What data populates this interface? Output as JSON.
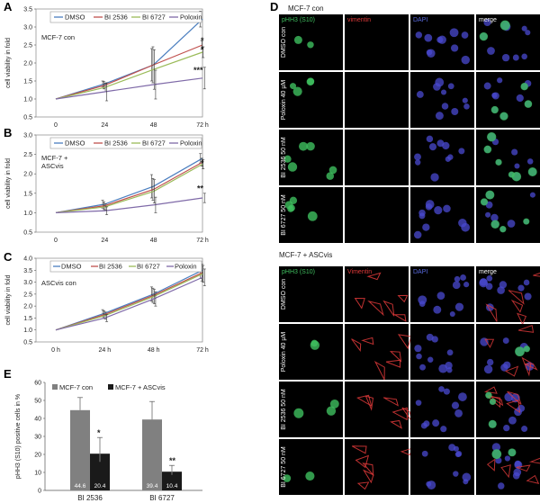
{
  "panels": {
    "A": {
      "letter": "A"
    },
    "B": {
      "letter": "B"
    },
    "C": {
      "letter": "C"
    },
    "D": {
      "letter": "D"
    },
    "E": {
      "letter": "E"
    }
  },
  "colors": {
    "dmso": "#4a7ebf",
    "bi2536": "#c0504d",
    "bi6727": "#9bbb59",
    "poloxin": "#7f6aa8",
    "mcf7con": "#808080",
    "mcf7asc": "#1a1a1a",
    "green": "#3fbf5f",
    "red": "#e03a3a",
    "blue": "#4a4ad0"
  },
  "chart_data": [
    {
      "id": "A",
      "type": "line",
      "title": "",
      "annotation": "MCF-7 con",
      "xlabel": "",
      "ylabel": "cell viability in fold",
      "categories": [
        "0",
        "24",
        "48",
        "72 h"
      ],
      "ylim": [
        0.5,
        3.5
      ],
      "yticks": [
        "0.5",
        "1.0",
        "1.5",
        "2.0",
        "2.5",
        "3.0",
        "3.5"
      ],
      "series": [
        {
          "name": "DMSO",
          "values": [
            1.0,
            1.42,
            1.95,
            3.22
          ],
          "err": [
            0,
            0.08,
            0.45,
            0.22
          ]
        },
        {
          "name": "BI 2536",
          "values": [
            1.0,
            1.38,
            1.95,
            2.5
          ],
          "err": [
            0,
            0.1,
            0.5,
            0.12
          ]
        },
        {
          "name": "BI 6727",
          "values": [
            1.0,
            1.32,
            1.82,
            2.3
          ],
          "err": [
            0,
            0.12,
            0.55,
            0.15
          ]
        },
        {
          "name": "Poloxin",
          "values": [
            1.0,
            1.2,
            1.4,
            1.58
          ],
          "err": [
            0,
            0.25,
            0.4,
            0.3
          ]
        }
      ],
      "significance": [
        "*",
        "*",
        "***"
      ]
    },
    {
      "id": "B",
      "type": "line",
      "annotation": "MCF-7 +\nASCvis",
      "annotation_lines": [
        "MCF-7 +",
        "ASCvis"
      ],
      "xlabel": "",
      "ylabel": "cell viability in fold",
      "categories": [
        "0",
        "24",
        "48",
        "72 h"
      ],
      "ylim": [
        0.5,
        3.0
      ],
      "yticks": [
        "0.5",
        "1.0",
        "1.5",
        "2.0",
        "2.5",
        "3.0"
      ],
      "series": [
        {
          "name": "DMSO",
          "values": [
            1.0,
            1.22,
            1.68,
            2.4
          ],
          "err": [
            0,
            0.1,
            0.3,
            0.12
          ]
        },
        {
          "name": "BI 2536",
          "values": [
            1.0,
            1.18,
            1.6,
            2.3
          ],
          "err": [
            0,
            0.1,
            0.28,
            0.1
          ]
        },
        {
          "name": "BI 6727",
          "values": [
            1.0,
            1.15,
            1.55,
            2.25
          ],
          "err": [
            0,
            0.08,
            0.3,
            0.12
          ]
        },
        {
          "name": "Poloxin",
          "values": [
            1.0,
            1.05,
            1.2,
            1.38
          ],
          "err": [
            0,
            0.1,
            0.2,
            0.12
          ]
        }
      ],
      "significance": [
        "*",
        "**"
      ]
    },
    {
      "id": "C",
      "type": "line",
      "annotation": "ASCvis con",
      "xlabel": "",
      "ylabel": "cell viability in fold",
      "categories": [
        "0 h",
        "24 h",
        "48 h",
        "72 h"
      ],
      "ylim": [
        0.5,
        4.0
      ],
      "yticks": [
        "0.5",
        "1.0",
        "1.5",
        "2.0",
        "2.5",
        "3.0",
        "3.5",
        "4.0"
      ],
      "series": [
        {
          "name": "DMSO",
          "values": [
            1.0,
            1.7,
            2.5,
            3.5
          ],
          "err": [
            0,
            0.15,
            0.3,
            0.35
          ]
        },
        {
          "name": "BI 2536",
          "values": [
            1.0,
            1.65,
            2.45,
            3.4
          ],
          "err": [
            0,
            0.15,
            0.3,
            0.35
          ]
        },
        {
          "name": "BI 6727",
          "values": [
            1.0,
            1.6,
            2.4,
            3.35
          ],
          "err": [
            0,
            0.15,
            0.3,
            0.35
          ]
        },
        {
          "name": "Poloxin",
          "values": [
            1.0,
            1.5,
            2.3,
            3.2
          ],
          "err": [
            0,
            0.15,
            0.3,
            0.35
          ]
        }
      ]
    },
    {
      "id": "E",
      "type": "bar",
      "xlabel": "",
      "ylabel": "pHH3 (S10) positive cells in %",
      "categories": [
        "BI 2536",
        "BI 6727"
      ],
      "ylim": [
        0,
        60
      ],
      "yticks": [
        "0",
        "10",
        "20",
        "30",
        "40",
        "50",
        "60"
      ],
      "series": [
        {
          "name": "MCF-7 con",
          "values": [
            44.6,
            39.4
          ],
          "err": [
            7,
            10
          ],
          "labels": [
            "44.6",
            "39.4"
          ]
        },
        {
          "name": "MCF-7 + ASCvis",
          "values": [
            20.4,
            10.4
          ],
          "err": [
            9,
            3.5
          ],
          "labels": [
            "20.4",
            "10.4"
          ]
        }
      ],
      "significance": [
        "*",
        "**"
      ]
    }
  ],
  "micro": {
    "top_title": "MCF-7 con",
    "bottom_title": "MCF-7 + ASCvis",
    "columns": [
      {
        "label": "pHH3 (S10)",
        "color": "#3fbf5f"
      },
      {
        "label": "vimentin",
        "color": "#e03a3a"
      },
      {
        "label": "DAPI",
        "color": "#5a6ae0"
      },
      {
        "label": "merge",
        "color": "#ffffff"
      }
    ],
    "columns_bottom": [
      {
        "label": "pHH3 (S10)",
        "color": "#3fbf5f"
      },
      {
        "label": "Vimentin",
        "color": "#e03a3a"
      },
      {
        "label": "DAPI",
        "color": "#5a6ae0"
      },
      {
        "label": "merge",
        "color": "#ffffff"
      }
    ],
    "rows_top": [
      "DMSO con",
      "Poloxin 40 µM",
      "BI 2536 50 nM",
      "BI 6727 50 nM"
    ],
    "rows_bottom": [
      "DMSO con",
      "Poloxin 40 µM",
      "BI 2536 50 nM",
      "BI 6727 50 nM"
    ]
  }
}
